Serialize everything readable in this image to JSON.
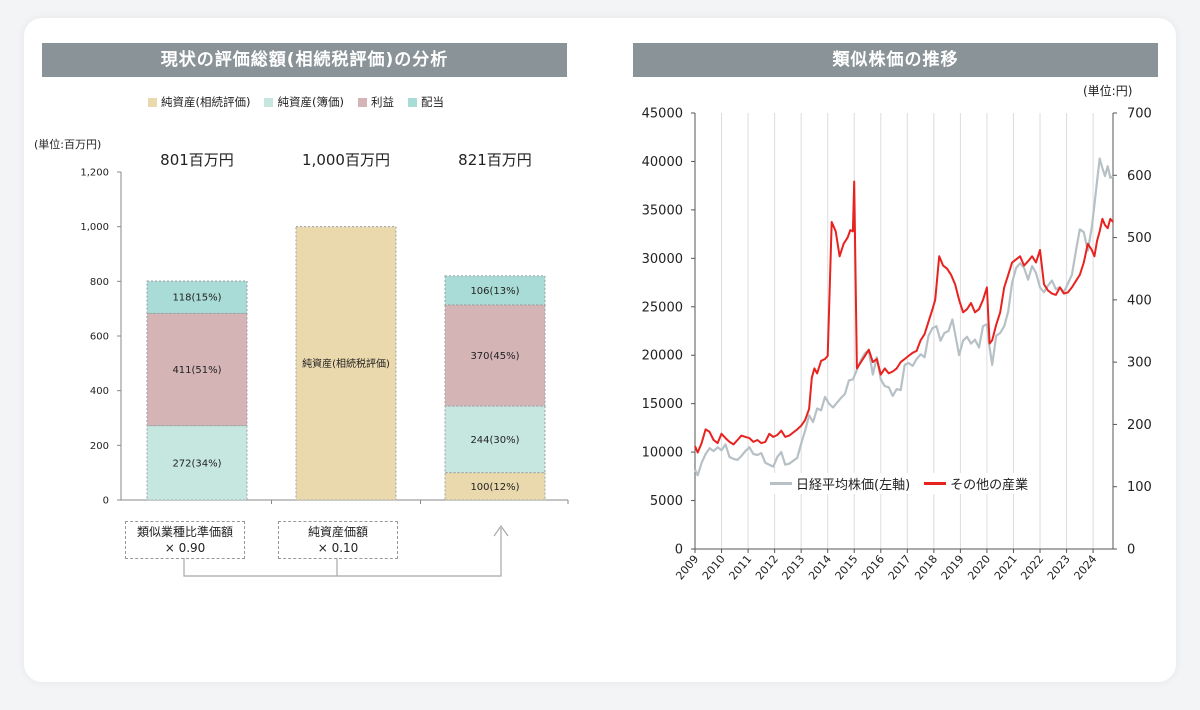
{
  "left_panel": {
    "title": "現状の評価総額(相続税評価)の分析",
    "unit_label": "(単位:百万円)",
    "formula": {
      "box1_line1": "類似業種比準価額",
      "box1_line2": "× 0.90",
      "box2_line1": "純資産価額",
      "box2_line2": "× 0.10"
    }
  },
  "right_panel": {
    "title": "類似株価の推移",
    "unit_label": "(単位:円)"
  },
  "colors": {
    "net_assets_inheritance": "#ead9ad",
    "net_assets_book": "#c6e6e0",
    "profit": "#d5b4b6",
    "dividend": "#a9dcd6",
    "nikkei": "#b7c1c5",
    "other_industries": "#e8221e"
  },
  "chart_data": [
    {
      "type": "bar",
      "stacked": true,
      "ylim": [
        0,
        1200
      ],
      "yticks": [
        "0",
        "200",
        "400",
        "600",
        "800",
        "1,000",
        "1,200"
      ],
      "legend": {
        "position": "top",
        "entries": [
          "純資産(相続評価)",
          "純資産(簿価)",
          "利益",
          "配当"
        ]
      },
      "totals": [
        "801百万円",
        "1,000百万円",
        "821百万円"
      ],
      "bars": [
        {
          "segments": [
            {
              "series": 1,
              "value": 272,
              "label": "272(34%)"
            },
            {
              "series": 2,
              "value": 411,
              "label": "411(51%)"
            },
            {
              "series": 3,
              "value": 118,
              "label": "118(15%)"
            }
          ]
        },
        {
          "segments": [
            {
              "series": 0,
              "value": 1000,
              "label": "純資産(相続税評価)"
            }
          ]
        },
        {
          "segments": [
            {
              "series": 0,
              "value": 100,
              "label": "100(12%)"
            },
            {
              "series": 1,
              "value": 244,
              "label": "244(30%)"
            },
            {
              "series": 2,
              "value": 370,
              "label": "370(45%)"
            },
            {
              "series": 3,
              "value": 106,
              "label": "106(13%)"
            }
          ]
        }
      ]
    },
    {
      "type": "line",
      "dual_axis": true,
      "x_range": [
        2009,
        2024.75
      ],
      "xticks": [
        "2009",
        "2010",
        "2011",
        "2012",
        "2013",
        "2014",
        "2015",
        "2016",
        "2017",
        "2018",
        "2019",
        "2020",
        "2021",
        "2022",
        "2023",
        "2024"
      ],
      "ylim_left": [
        0,
        45000
      ],
      "yticks_left": [
        "0",
        "5000",
        "10000",
        "15000",
        "20000",
        "25000",
        "30000",
        "35000",
        "40000",
        "45000"
      ],
      "ylim_right": [
        0,
        700
      ],
      "yticks_right": [
        "0",
        "100",
        "200",
        "300",
        "400",
        "500",
        "600",
        "700"
      ],
      "grid": "vertical",
      "legend": {
        "position": "bottom-center",
        "entries": [
          "日経平均株価(左軸)",
          "その他の産業"
        ]
      },
      "series": [
        {
          "name": "日経平均株価(左軸)",
          "axis": "left",
          "x": [
            2009.0,
            2009.1,
            2009.25,
            2009.4,
            2009.55,
            2009.7,
            2009.85,
            2010.0,
            2010.15,
            2010.3,
            2010.45,
            2010.6,
            2010.75,
            2010.9,
            2011.05,
            2011.2,
            2011.35,
            2011.5,
            2011.65,
            2011.8,
            2011.95,
            2012.1,
            2012.25,
            2012.4,
            2012.55,
            2012.7,
            2012.85,
            2013.0,
            2013.15,
            2013.3,
            2013.45,
            2013.6,
            2013.75,
            2013.9,
            2014.05,
            2014.2,
            2014.35,
            2014.5,
            2014.65,
            2014.8,
            2014.95,
            2015.1,
            2015.25,
            2015.4,
            2015.55,
            2015.7,
            2015.85,
            2016.0,
            2016.15,
            2016.3,
            2016.45,
            2016.6,
            2016.75,
            2016.9,
            2017.05,
            2017.2,
            2017.35,
            2017.5,
            2017.65,
            2017.8,
            2017.95,
            2018.1,
            2018.25,
            2018.4,
            2018.55,
            2018.7,
            2018.85,
            2018.95,
            2019.1,
            2019.25,
            2019.4,
            2019.55,
            2019.7,
            2019.85,
            2020.0,
            2020.1,
            2020.2,
            2020.35,
            2020.5,
            2020.65,
            2020.8,
            2020.95,
            2021.1,
            2021.25,
            2021.4,
            2021.55,
            2021.7,
            2021.85,
            2022.0,
            2022.15,
            2022.3,
            2022.45,
            2022.6,
            2022.75,
            2022.9,
            2023.05,
            2023.2,
            2023.35,
            2023.5,
            2023.65,
            2023.8,
            2023.95,
            2024.05,
            2024.15,
            2024.25,
            2024.35,
            2024.45,
            2024.55,
            2024.65,
            2024.75
          ],
          "y": [
            8200,
            7600,
            8900,
            9800,
            10400,
            10100,
            10500,
            10200,
            10800,
            9500,
            9300,
            9200,
            9600,
            10100,
            10500,
            9800,
            9700,
            9900,
            8900,
            8700,
            8500,
            9500,
            10000,
            8700,
            8800,
            9100,
            9400,
            10900,
            12200,
            13800,
            13100,
            14500,
            14300,
            15700,
            15000,
            14600,
            15100,
            15600,
            16000,
            17400,
            17500,
            18500,
            19500,
            20200,
            20500,
            18000,
            19800,
            17500,
            16800,
            16700,
            15800,
            16500,
            16400,
            19000,
            19200,
            18900,
            19600,
            20100,
            19800,
            22000,
            22800,
            23000,
            21500,
            22300,
            22500,
            23700,
            21500,
            20000,
            21500,
            21900,
            21200,
            21600,
            20800,
            23000,
            23200,
            20800,
            19000,
            22000,
            22300,
            23000,
            24500,
            27500,
            29000,
            29500,
            29000,
            27800,
            29200,
            28500,
            27000,
            26500,
            27200,
            27700,
            26800,
            27000,
            26500,
            27400,
            28300,
            30700,
            33000,
            32700,
            30800,
            33200,
            35500,
            38000,
            40300,
            39300,
            38500,
            39500,
            38300,
            38500
          ]
        },
        {
          "name": "その他の産業",
          "axis": "right",
          "x": [
            2009.0,
            2009.1,
            2009.25,
            2009.4,
            2009.55,
            2009.7,
            2009.85,
            2010.0,
            2010.15,
            2010.3,
            2010.45,
            2010.6,
            2010.75,
            2010.9,
            2011.05,
            2011.2,
            2011.35,
            2011.5,
            2011.65,
            2011.8,
            2011.95,
            2012.1,
            2012.25,
            2012.4,
            2012.55,
            2012.7,
            2012.85,
            2013.0,
            2013.15,
            2013.3,
            2013.4,
            2013.5,
            2013.6,
            2013.75,
            2013.9,
            2014.0,
            2014.05,
            2014.15,
            2014.3,
            2014.45,
            2014.6,
            2014.75,
            2014.85,
            2014.95,
            2015.0,
            2015.1,
            2015.25,
            2015.4,
            2015.55,
            2015.7,
            2015.85,
            2016.0,
            2016.15,
            2016.3,
            2016.45,
            2016.6,
            2016.75,
            2016.9,
            2017.05,
            2017.2,
            2017.35,
            2017.5,
            2017.65,
            2017.8,
            2017.95,
            2018.05,
            2018.2,
            2018.35,
            2018.5,
            2018.65,
            2018.8,
            2018.95,
            2019.1,
            2019.25,
            2019.4,
            2019.55,
            2019.7,
            2019.85,
            2020.0,
            2020.1,
            2020.2,
            2020.35,
            2020.5,
            2020.65,
            2020.8,
            2020.95,
            2021.1,
            2021.25,
            2021.4,
            2021.55,
            2021.7,
            2021.85,
            2022.0,
            2022.15,
            2022.3,
            2022.45,
            2022.6,
            2022.75,
            2022.9,
            2023.05,
            2023.2,
            2023.35,
            2023.5,
            2023.65,
            2023.8,
            2023.95,
            2024.05,
            2024.15,
            2024.25,
            2024.35,
            2024.45,
            2024.55,
            2024.65,
            2024.75
          ],
          "y": [
            165,
            155,
            170,
            192,
            188,
            175,
            170,
            185,
            178,
            172,
            168,
            175,
            182,
            180,
            178,
            172,
            175,
            170,
            172,
            185,
            180,
            183,
            190,
            180,
            182,
            187,
            192,
            198,
            207,
            225,
            275,
            290,
            282,
            302,
            305,
            310,
            380,
            525,
            510,
            470,
            490,
            500,
            512,
            510,
            590,
            290,
            300,
            310,
            320,
            300,
            305,
            280,
            290,
            282,
            285,
            290,
            300,
            305,
            310,
            315,
            318,
            335,
            345,
            365,
            385,
            400,
            470,
            455,
            450,
            440,
            425,
            400,
            380,
            385,
            395,
            380,
            385,
            400,
            420,
            330,
            335,
            360,
            380,
            420,
            440,
            460,
            465,
            470,
            455,
            462,
            470,
            460,
            480,
            425,
            415,
            410,
            408,
            420,
            410,
            412,
            420,
            430,
            440,
            460,
            490,
            480,
            470,
            495,
            510,
            530,
            520,
            515,
            530,
            525
          ]
        }
      ]
    }
  ]
}
